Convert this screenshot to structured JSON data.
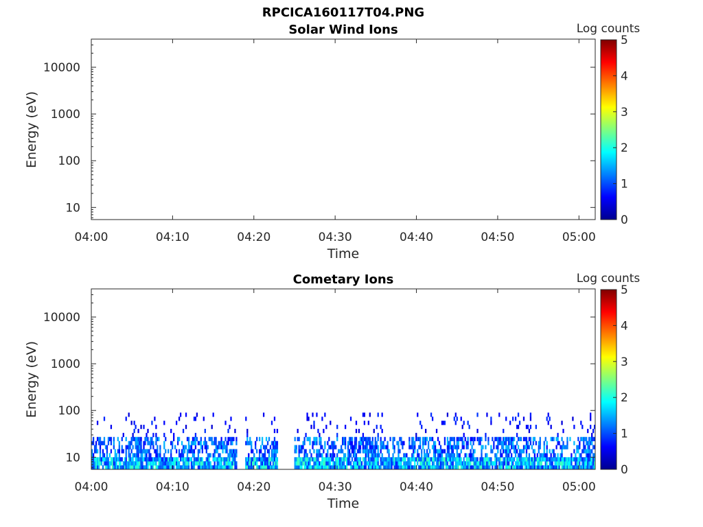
{
  "figure_title": "RPCICA160117T04.PNG",
  "colorbar": {
    "label": "Log counts",
    "range": [
      0,
      5
    ],
    "ticks": [
      "0",
      "1",
      "2",
      "3",
      "4",
      "5"
    ],
    "colormap": "jet"
  },
  "chart_data": [
    {
      "type": "heatmap",
      "title": "Solar Wind Ions",
      "xlabel": "Time",
      "ylabel": "Energy (eV)",
      "x_ticks": [
        "04:00",
        "04:10",
        "04:20",
        "04:30",
        "04:40",
        "04:50",
        "05:00"
      ],
      "x_range": [
        "04:00",
        "05:02"
      ],
      "y_ticks": [
        "10",
        "100",
        "1000",
        "10000"
      ],
      "y_range": [
        5.5,
        40000
      ],
      "y_scale": "log",
      "grid": false,
      "data": []
    },
    {
      "type": "heatmap",
      "title": "Cometary Ions",
      "xlabel": "Time",
      "ylabel": "Energy (eV)",
      "x_ticks": [
        "04:00",
        "04:10",
        "04:20",
        "04:30",
        "04:40",
        "04:50",
        "05:00"
      ],
      "x_range": [
        "04:00",
        "05:02"
      ],
      "y_ticks": [
        "10",
        "100",
        "1000",
        "10000"
      ],
      "y_range": [
        5.5,
        40000
      ],
      "y_scale": "log",
      "grid": false,
      "energy_extent_eV": [
        5.5,
        90
      ],
      "typical_log_counts": {
        "below_25_eV": "1 to 2",
        "25_to_90_eV": "0 to 1 (sparse)"
      },
      "data_gaps": [
        [
          "04:18",
          "04:19"
        ],
        [
          "04:23",
          "04:25"
        ]
      ]
    }
  ]
}
